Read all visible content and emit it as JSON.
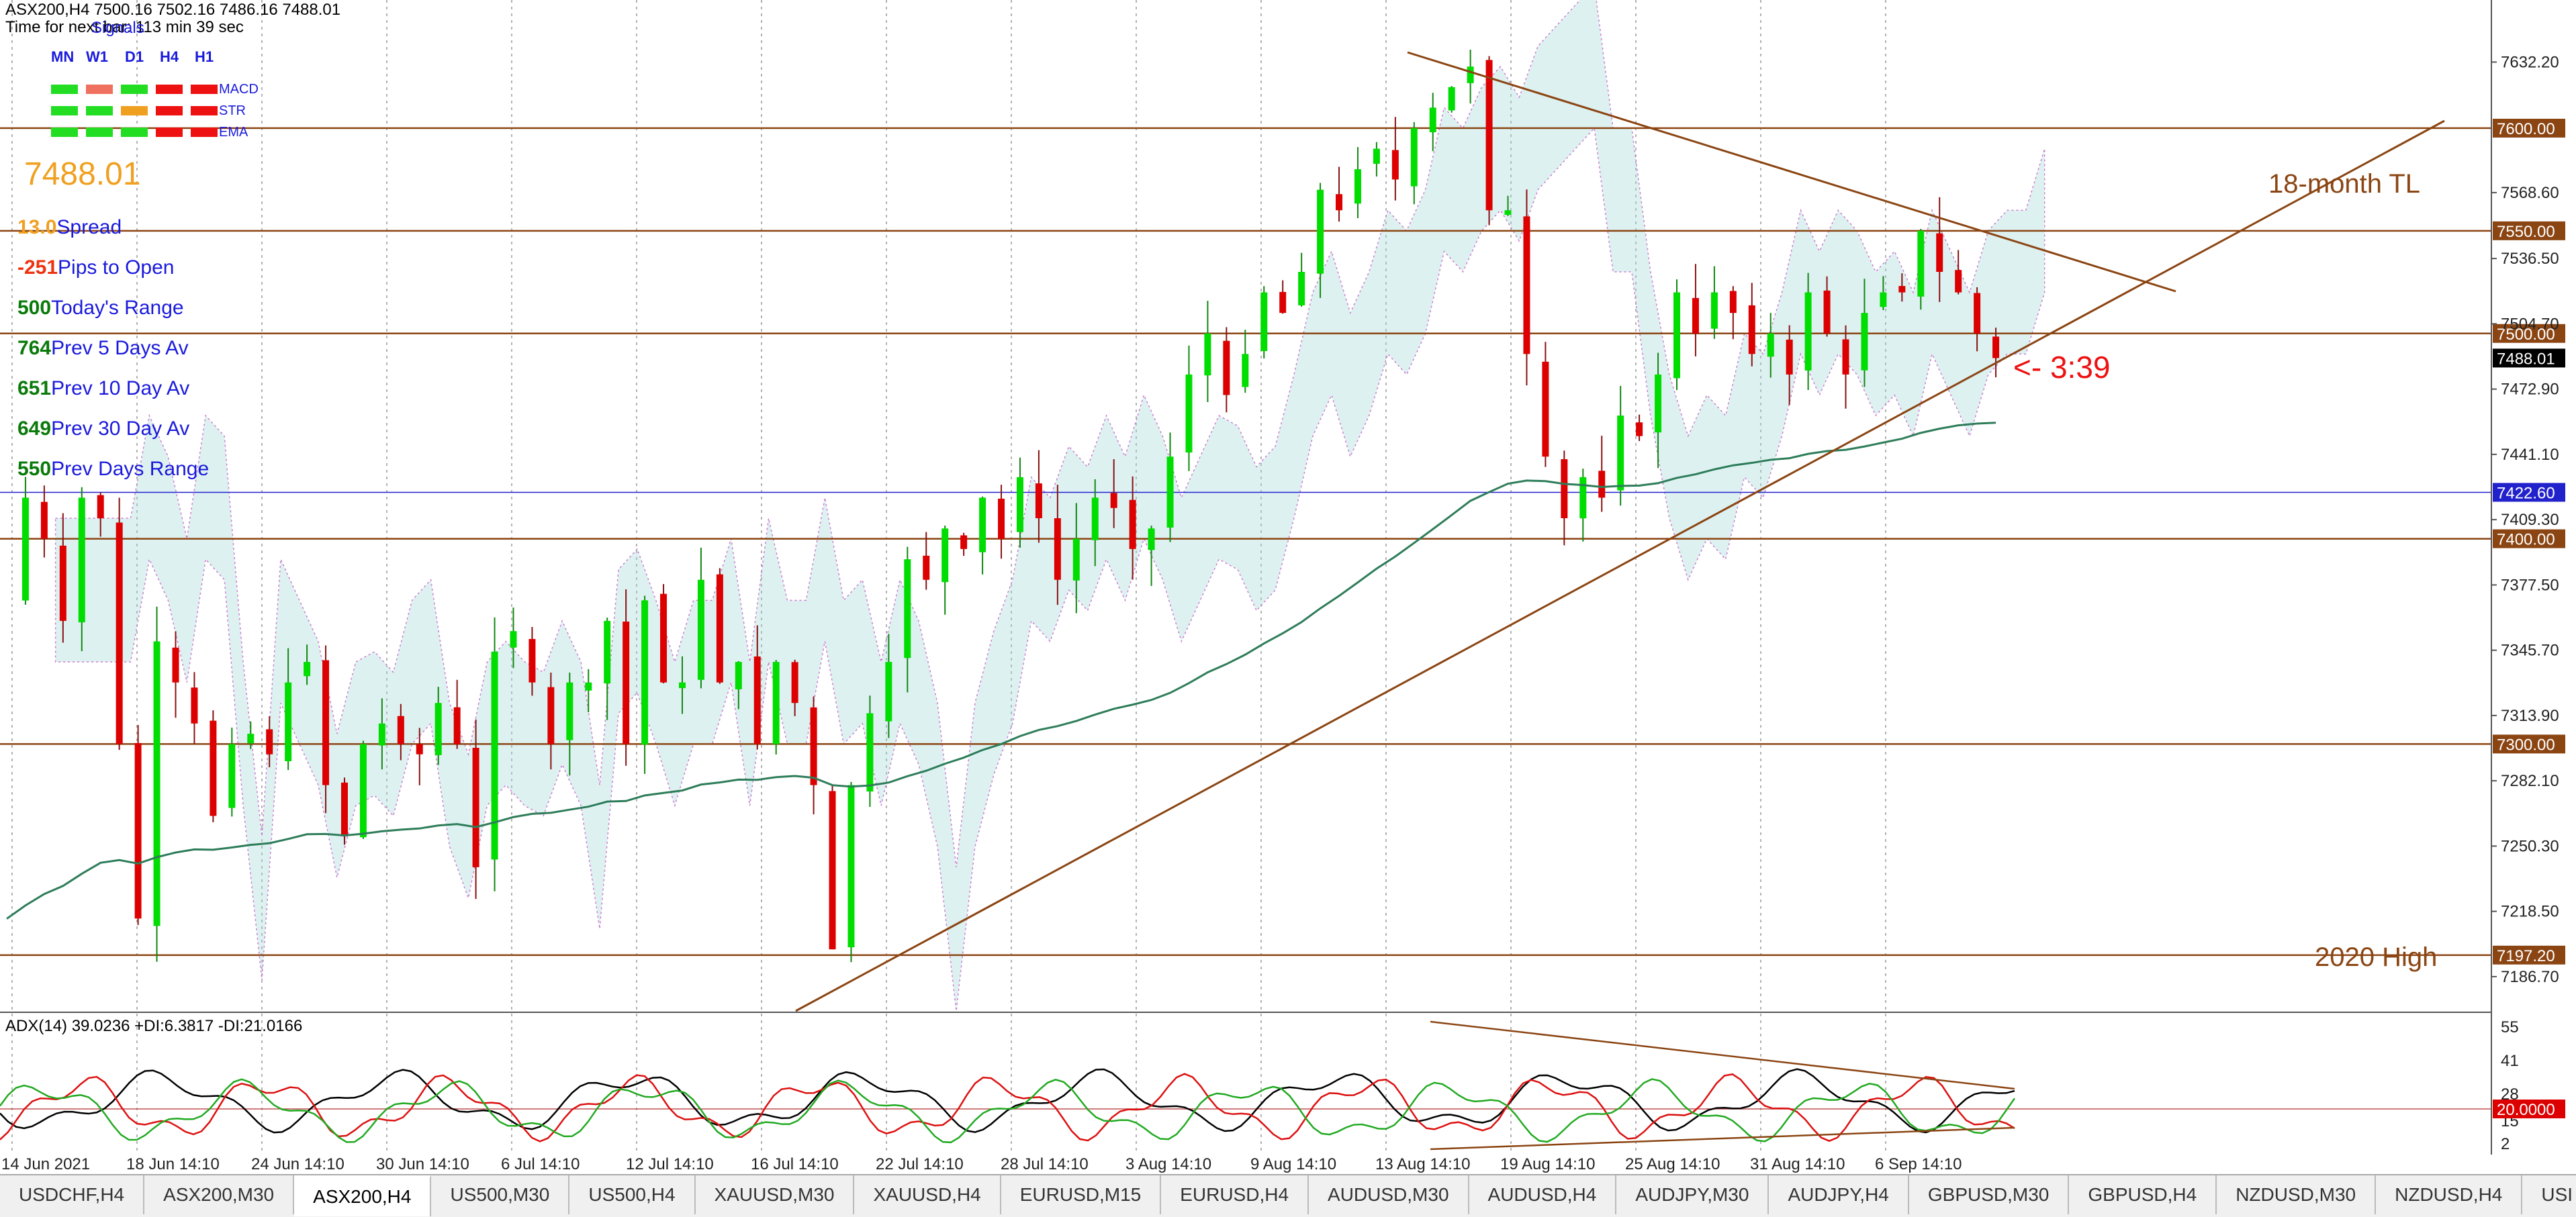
{
  "header": {
    "title": "ASX200,H4  7500.16 7502.16 7486.16 7488.01",
    "timer": "Time for next bar: 113 min 39 sec"
  },
  "signals": {
    "title": "Signals",
    "timeframes": [
      "MN",
      "W1",
      "D1",
      "H4",
      "H1"
    ],
    "rows": [
      {
        "label": "MACD",
        "colors": [
          "#22dd22",
          "#f07060",
          "#22dd22",
          "#ee1111",
          "#ee1111"
        ]
      },
      {
        "label": "STR",
        "colors": [
          "#22dd22",
          "#22dd22",
          "#f0a020",
          "#ee1111",
          "#ee1111"
        ]
      },
      {
        "label": "EMA",
        "colors": [
          "#22dd22",
          "#22dd22",
          "#22dd22",
          "#ee1111",
          "#ee1111"
        ]
      }
    ]
  },
  "price_display": "7488.01",
  "stats": [
    {
      "value": "13.0",
      "label": "Spread",
      "color": "#f0a020"
    },
    {
      "value": "-251",
      "label": "Pips to Open",
      "color": "#ee3311"
    },
    {
      "value": "500",
      "label": "Today's Range",
      "color": "#0a7a0a"
    },
    {
      "value": "764",
      "label": "Prev 5 Days Av",
      "color": "#0a7a0a"
    },
    {
      "value": "651",
      "label": "Prev 10 Day Av",
      "color": "#0a7a0a"
    },
    {
      "value": "649",
      "label": "Prev 30 Day Av",
      "color": "#0a7a0a"
    },
    {
      "value": "550",
      "label": "Prev Days Range",
      "color": "#0a7a0a"
    }
  ],
  "annotations": {
    "tl_label": "18-month TL",
    "high_label": "2020 High",
    "timer_label": "<- 3:39"
  },
  "colors": {
    "bull": "#00dd00",
    "bear": "#dd0000",
    "level": "#8b4513",
    "ma": "#2e7d5a",
    "cloud_up": "#9ed6d6",
    "cloud_down": "#d07ad0",
    "blue_level": "#2222cc"
  },
  "chart_data": {
    "type": "candlestick",
    "symbol": "ASX200,H4",
    "ylim": [
      7170,
      7650
    ],
    "y_ticks": [
      "7632.20",
      "7568.60",
      "7536.50",
      "7504.70",
      "7472.90",
      "7441.10",
      "7409.30",
      "7377.50",
      "7345.70",
      "7313.90",
      "7282.10",
      "7250.30",
      "7218.50",
      "7186.70"
    ],
    "level_labels": [
      {
        "value": 7600.0,
        "label": "7600.00",
        "style": "brown"
      },
      {
        "value": 7550.0,
        "label": "7550.00",
        "style": "brown"
      },
      {
        "value": 7500.0,
        "label": "7500.00",
        "style": "brown"
      },
      {
        "value": 7488.01,
        "label": "7488.01",
        "style": "black"
      },
      {
        "value": 7422.6,
        "label": "7422.60",
        "style": "blue"
      },
      {
        "value": 7400.0,
        "label": "7400.00",
        "style": "brown"
      },
      {
        "value": 7300.0,
        "label": "7300.00",
        "style": "brown"
      },
      {
        "value": 7197.2,
        "label": "7197.20",
        "style": "brown"
      }
    ],
    "x_labels": [
      "14 Jun 2021",
      "18 Jun 14:10",
      "24 Jun 14:10",
      "30 Jun 14:10",
      "6 Jul 14:10",
      "12 Jul 14:10",
      "16 Jul 14:10",
      "22 Jul 14:10",
      "28 Jul 14:10",
      "3 Aug 14:10",
      "9 Aug 14:10",
      "13 Aug 14:10",
      "19 Aug 14:10",
      "25 Aug 14:10",
      "31 Aug 14:10",
      "6 Sep 14:10"
    ],
    "close_path": [
      7370,
      7420,
      7400,
      7360,
      7420,
      7410,
      7300,
      7215,
      7350,
      7330,
      7310,
      7265,
      7300,
      7305,
      7295,
      7330,
      7340,
      7280,
      7255,
      7300,
      7310,
      7300,
      7295,
      7320,
      7300,
      7240,
      7345,
      7355,
      7330,
      7300,
      7330,
      7330,
      7360,
      7300,
      7370,
      7330,
      7330,
      7380,
      7330,
      7340,
      7300,
      7340,
      7320,
      7280,
      7200,
      7280,
      7315,
      7340,
      7390,
      7380,
      7405,
      7395,
      7420,
      7400,
      7430,
      7410,
      7380,
      7400,
      7420,
      7415,
      7395,
      7405,
      7440,
      7480,
      7500,
      7470,
      7490,
      7520,
      7510,
      7530,
      7570,
      7560,
      7580,
      7590,
      7575,
      7600,
      7610,
      7620,
      7630,
      7560,
      7560,
      7490,
      7440,
      7410,
      7430,
      7420,
      7460,
      7450,
      7480,
      7520,
      7500,
      7520,
      7510,
      7490,
      7500,
      7480,
      7520,
      7500,
      7480,
      7510,
      7520,
      7520,
      7550,
      7530,
      7520,
      7500,
      7488
    ],
    "adx": {
      "title": "ADX(14) 39.0236 +DI:6.3817 -DI:21.0166",
      "y_ticks": [
        "55",
        "41",
        "28",
        "15",
        "2"
      ],
      "level_label": "20.0000"
    }
  },
  "tabs": [
    {
      "label": "USDCHF,H4",
      "active": false
    },
    {
      "label": "ASX200,M30",
      "active": false
    },
    {
      "label": "ASX200,H4",
      "active": true
    },
    {
      "label": "US500,M30",
      "active": false
    },
    {
      "label": "US500,H4",
      "active": false
    },
    {
      "label": "XAUUSD,M30",
      "active": false
    },
    {
      "label": "XAUUSD,H4",
      "active": false
    },
    {
      "label": "EURUSD,M15",
      "active": false
    },
    {
      "label": "EURUSD,H4",
      "active": false
    },
    {
      "label": "AUDUSD,M30",
      "active": false
    },
    {
      "label": "AUDUSD,H4",
      "active": false
    },
    {
      "label": "AUDJPY,M30",
      "active": false
    },
    {
      "label": "AUDJPY,H4",
      "active": false
    },
    {
      "label": "GBPUSD,M30",
      "active": false
    },
    {
      "label": "GBPUSD,H4",
      "active": false
    },
    {
      "label": "NZDUSD,M30",
      "active": false
    },
    {
      "label": "NZDUSD,H4",
      "active": false
    },
    {
      "label": "USI",
      "active": false
    }
  ]
}
